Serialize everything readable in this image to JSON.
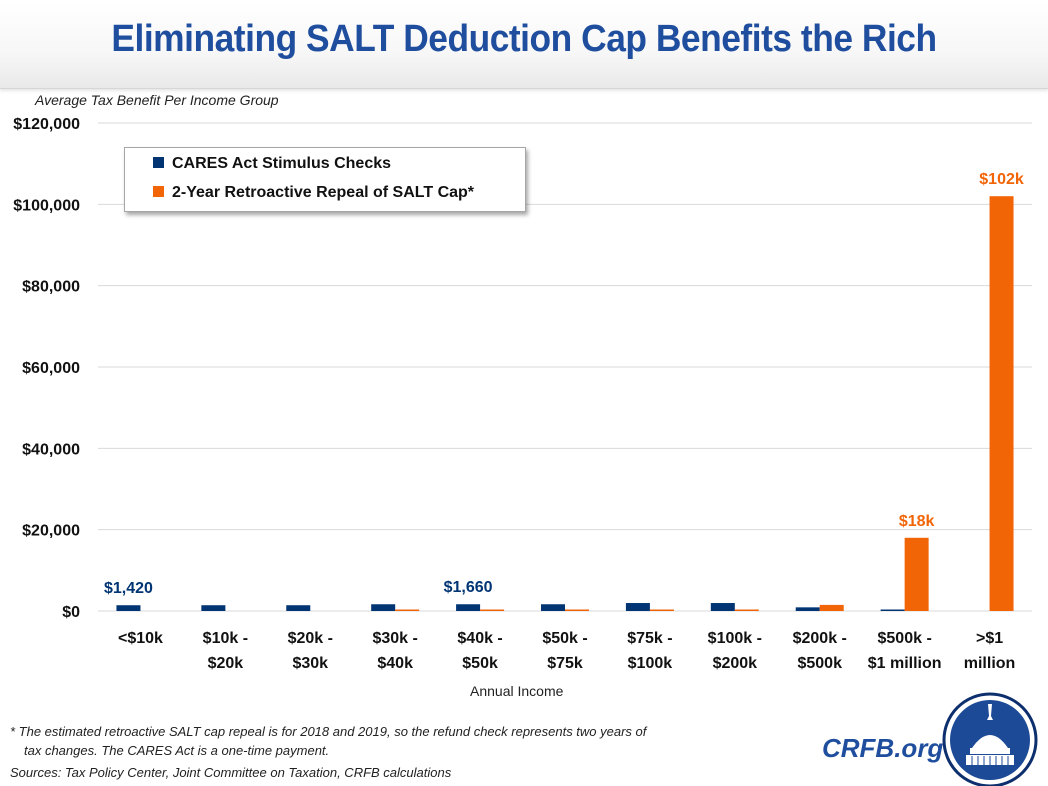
{
  "header": {
    "title": "Eliminating SALT Deduction Cap Benefits the Rich"
  },
  "footer": {
    "note_line1": "* The estimated retroactive SALT cap repeal is for 2018 and 2019, so the refund check represents two years of",
    "note_line2": "tax changes. The CARES Act is a one-time payment.",
    "sources": "Sources: Tax Policy Center, Joint Committee on Taxation, CRFB calculations",
    "brand": "CRFB.org"
  },
  "colors": {
    "navy": "#003473",
    "orange": "#f26507",
    "title_blue": "#1f4e9e",
    "grid": "#d9d9d9"
  },
  "chart_data": {
    "type": "bar",
    "title": "Eliminating SALT Deduction Cap Benefits the Rich",
    "subtitle": "Average Tax Benefit Per Income Group",
    "xlabel": "Annual Income",
    "ylabel": "Average Tax Benefit Per Income Group",
    "ylim": [
      0,
      120000
    ],
    "yticks": [
      0,
      20000,
      40000,
      60000,
      80000,
      100000,
      120000
    ],
    "ytick_labels": [
      "$0",
      "$20,000",
      "$40,000",
      "$60,000",
      "$80,000",
      "$100,000",
      "$120,000"
    ],
    "grid": true,
    "legend_position": "top-left",
    "categories": [
      [
        "<$10k"
      ],
      [
        "$10k -",
        "$20k"
      ],
      [
        "$20k -",
        "$30k"
      ],
      [
        "$30k -",
        "$40k"
      ],
      [
        "$40k -",
        "$50k"
      ],
      [
        "$50k -",
        "$75k"
      ],
      [
        "$75k -",
        "$100k"
      ],
      [
        "$100k -",
        "$200k"
      ],
      [
        "$200k -",
        "$500k"
      ],
      [
        "$500k -",
        "$1 million"
      ],
      [
        ">$1",
        "million"
      ]
    ],
    "series": [
      {
        "name": "CARES Act Stimulus Checks",
        "color": "#003473",
        "values": [
          1420,
          1420,
          1420,
          1660,
          1660,
          1660,
          1960,
          1960,
          900,
          300,
          0
        ],
        "labels": {
          "0": "$1,420",
          "4": "$1,660"
        }
      },
      {
        "name": "2-Year Retroactive Repeal of SALT Cap*",
        "color": "#f26507",
        "values": [
          0,
          0,
          0,
          300,
          300,
          300,
          300,
          300,
          1500,
          18000,
          102000
        ],
        "labels": {
          "9": "$18k",
          "10": "$102k"
        }
      }
    ]
  }
}
